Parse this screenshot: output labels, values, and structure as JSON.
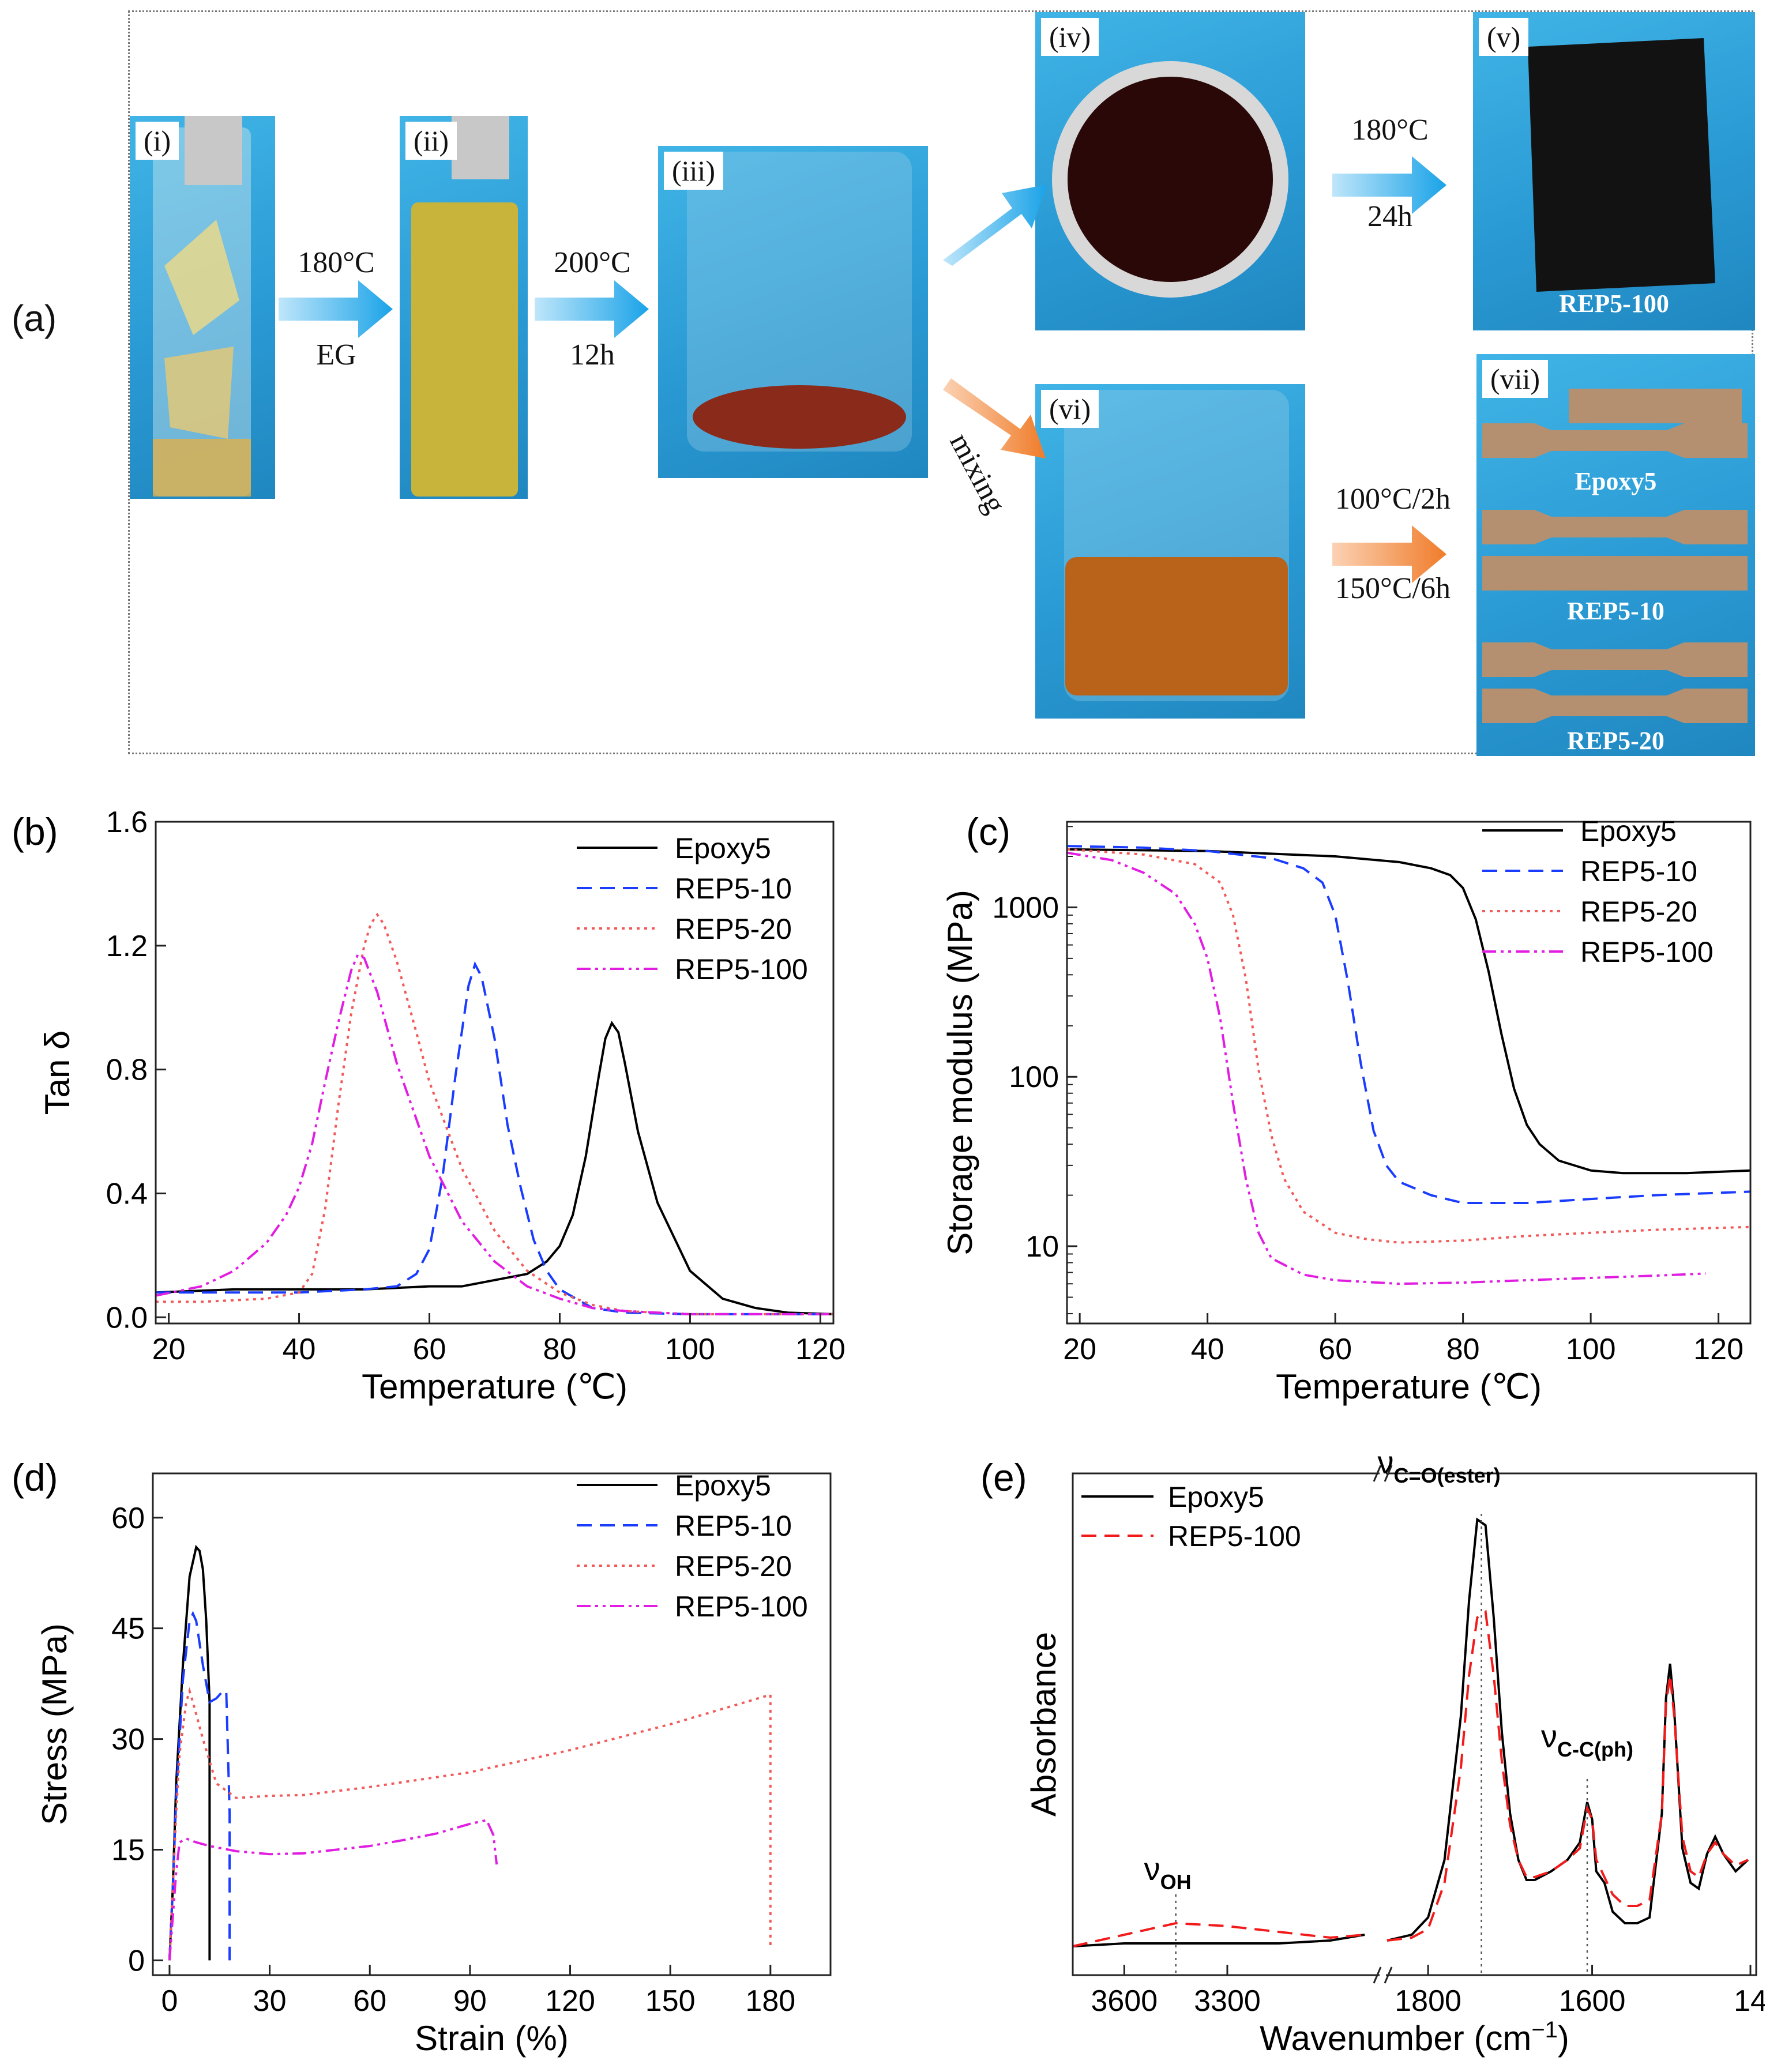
{
  "panel_a": {
    "label": "(a)",
    "photos": [
      {
        "id": "i",
        "label": "(i)"
      },
      {
        "id": "ii",
        "label": "(ii)"
      },
      {
        "id": "iii",
        "label": "(iii)"
      },
      {
        "id": "iv",
        "label": "(iv)"
      },
      {
        "id": "v",
        "label": "(v)",
        "caption": "REP5-100"
      },
      {
        "id": "vi",
        "label": "(vi)"
      },
      {
        "id": "vii",
        "label": "(vii)",
        "captions": [
          "Epoxy5",
          "REP5-10",
          "REP5-20"
        ]
      }
    ],
    "steps": {
      "s1_top": "180°C",
      "s1_bottom": "EG",
      "s2_top": "200°C",
      "s2_bottom": "12h",
      "s3_top": "180°C",
      "s3_bottom": "24h",
      "mixing": "mixing",
      "s4_top": "100°C/2h",
      "s4_bottom": "150°C/6h"
    },
    "colors": {
      "blue_arrow": "#1aa3e8",
      "orange_arrow": "#f07c2a",
      "photo_bg": "#2a9ad4"
    }
  },
  "chart_data": [
    {
      "id": "b",
      "panel_label": "(b)",
      "type": "line",
      "xlabel": "Temperature (℃)",
      "ylabel": "Tan δ",
      "xlim": [
        18,
        122
      ],
      "ylim": [
        -0.02,
        1.6
      ],
      "xticks": [
        20,
        40,
        60,
        80,
        100,
        120
      ],
      "yticks": [
        0.0,
        0.4,
        0.8,
        1.2,
        1.6
      ],
      "ytick_labels": [
        "0.0",
        "0.4",
        "0.8",
        "1.2",
        "1.6"
      ],
      "legend_position": "top-right",
      "series": [
        {
          "name": "Epoxy5",
          "color": "#000000",
          "dash": "solid",
          "x": [
            18,
            30,
            40,
            50,
            60,
            65,
            70,
            75,
            78,
            80,
            82,
            84,
            86,
            87,
            88,
            89,
            90,
            92,
            95,
            100,
            105,
            110,
            115,
            122
          ],
          "y": [
            0.08,
            0.09,
            0.09,
            0.09,
            0.1,
            0.1,
            0.12,
            0.14,
            0.18,
            0.23,
            0.33,
            0.52,
            0.78,
            0.9,
            0.95,
            0.92,
            0.82,
            0.6,
            0.37,
            0.15,
            0.06,
            0.03,
            0.015,
            0.01
          ]
        },
        {
          "name": "REP5-10",
          "color": "#1a3cff",
          "dash": "dashed",
          "x": [
            18,
            30,
            40,
            50,
            55,
            58,
            60,
            62,
            64,
            66,
            67,
            68,
            70,
            72,
            74,
            76,
            78,
            80,
            85,
            90,
            100,
            110,
            122
          ],
          "y": [
            0.08,
            0.08,
            0.08,
            0.09,
            0.1,
            0.14,
            0.22,
            0.45,
            0.78,
            1.07,
            1.14,
            1.1,
            0.9,
            0.62,
            0.42,
            0.25,
            0.15,
            0.09,
            0.03,
            0.015,
            0.01,
            0.01,
            0.01
          ]
        },
        {
          "name": "REP5-20",
          "color": "#f25a5a",
          "dash": "dotted",
          "x": [
            18,
            25,
            35,
            40,
            42,
            44,
            46,
            48,
            50,
            51,
            52,
            53,
            55,
            58,
            60,
            65,
            70,
            75,
            80,
            85,
            90,
            100,
            110,
            122
          ],
          "y": [
            0.05,
            0.05,
            0.06,
            0.08,
            0.14,
            0.35,
            0.68,
            0.98,
            1.2,
            1.27,
            1.3,
            1.27,
            1.15,
            0.92,
            0.76,
            0.48,
            0.28,
            0.15,
            0.08,
            0.04,
            0.02,
            0.01,
            0.01,
            0.01
          ]
        },
        {
          "name": "REP5-100",
          "color": "#e21de2",
          "dash": "dashdotdot",
          "x": [
            18,
            25,
            30,
            35,
            38,
            40,
            42,
            44,
            46,
            48,
            49,
            50,
            52,
            55,
            60,
            65,
            70,
            75,
            80,
            85,
            90,
            100,
            110,
            122
          ],
          "y": [
            0.07,
            0.1,
            0.15,
            0.24,
            0.33,
            0.42,
            0.56,
            0.76,
            0.95,
            1.12,
            1.17,
            1.16,
            1.05,
            0.82,
            0.52,
            0.31,
            0.18,
            0.1,
            0.06,
            0.03,
            0.02,
            0.01,
            0.01,
            0.01
          ]
        }
      ]
    },
    {
      "id": "c",
      "panel_label": "(c)",
      "type": "line",
      "yscale": "log",
      "xlabel": "Temperature (℃)",
      "ylabel": "Storage modulus (MPa)",
      "xlim": [
        18,
        125
      ],
      "ylim": [
        3.5,
        3200
      ],
      "xticks": [
        20,
        40,
        60,
        80,
        100,
        120
      ],
      "yticks": [
        10,
        100,
        1000
      ],
      "ytick_labels": [
        "10",
        "100",
        "1000"
      ],
      "legend_position": "top-right",
      "series": [
        {
          "name": "Epoxy5",
          "color": "#000000",
          "dash": "solid",
          "x": [
            18,
            40,
            60,
            70,
            75,
            78,
            80,
            82,
            84,
            86,
            88,
            90,
            92,
            95,
            100,
            105,
            110,
            115,
            120,
            125
          ],
          "y": [
            2200,
            2150,
            2000,
            1850,
            1700,
            1550,
            1300,
            850,
            420,
            180,
            85,
            52,
            40,
            32,
            28,
            27,
            27,
            27,
            27.5,
            28
          ]
        },
        {
          "name": "REP5-10",
          "color": "#1a3cff",
          "dash": "dashed",
          "x": [
            18,
            30,
            40,
            50,
            55,
            58,
            60,
            62,
            64,
            66,
            68,
            70,
            75,
            80,
            90,
            100,
            110,
            125
          ],
          "y": [
            2300,
            2250,
            2150,
            1950,
            1700,
            1400,
            900,
            360,
            120,
            48,
            30,
            24,
            20,
            18,
            18,
            19,
            20,
            21
          ]
        },
        {
          "name": "REP5-20",
          "color": "#f25a5a",
          "dash": "dotted",
          "x": [
            18,
            30,
            38,
            42,
            44,
            46,
            48,
            50,
            52,
            55,
            60,
            65,
            70,
            80,
            90,
            100,
            110,
            125
          ],
          "y": [
            2200,
            2050,
            1800,
            1400,
            900,
            380,
            110,
            45,
            25,
            16,
            12,
            11,
            10.5,
            10.8,
            11.5,
            12,
            12.5,
            13
          ]
        },
        {
          "name": "REP5-100",
          "color": "#e21de2",
          "dash": "dashdotdot",
          "x": [
            18,
            25,
            30,
            35,
            38,
            40,
            42,
            44,
            46,
            48,
            50,
            55,
            60,
            70,
            80,
            90,
            100,
            110,
            118
          ],
          "y": [
            2100,
            1900,
            1600,
            1200,
            800,
            500,
            220,
            70,
            25,
            12,
            8.5,
            6.8,
            6.3,
            6.0,
            6.1,
            6.3,
            6.5,
            6.7,
            6.9
          ]
        }
      ]
    },
    {
      "id": "d",
      "panel_label": "(d)",
      "type": "line",
      "xlabel": "Strain (%)",
      "ylabel": "Stress (MPa)",
      "xlim": [
        -5,
        198
      ],
      "ylim": [
        -2,
        66
      ],
      "xticks": [
        0,
        30,
        60,
        90,
        120,
        150,
        180
      ],
      "yticks": [
        0,
        15,
        30,
        45,
        60
      ],
      "ytick_labels": [
        "0",
        "15",
        "30",
        "45",
        "60"
      ],
      "legend_position": "top-right",
      "series": [
        {
          "name": "Epoxy5",
          "color": "#000000",
          "dash": "solid",
          "x": [
            0,
            1,
            2,
            4,
            6,
            8,
            9,
            10,
            11,
            12,
            12,
            12
          ],
          "y": [
            0,
            10,
            24,
            40,
            52,
            56,
            55.5,
            53,
            46,
            35,
            15,
            0
          ]
        },
        {
          "name": "REP5-10",
          "color": "#1a3cff",
          "dash": "dashed",
          "x": [
            0,
            1,
            2,
            4,
            6,
            7,
            8,
            10,
            12,
            14,
            16,
            17,
            18,
            18
          ],
          "y": [
            0,
            10,
            22,
            38,
            46,
            47,
            46,
            40,
            35,
            35.5,
            36.5,
            36.5,
            20,
            0
          ]
        },
        {
          "name": "REP5-20",
          "color": "#f25a5a",
          "dash": "dotted",
          "x": [
            0,
            1,
            2,
            3,
            5,
            6,
            7,
            10,
            14,
            20,
            30,
            40,
            60,
            90,
            120,
            150,
            180,
            180
          ],
          "y": [
            0,
            10,
            20,
            28,
            35,
            36.5,
            35,
            30,
            24,
            22,
            22.3,
            22.4,
            23.5,
            25.5,
            28.5,
            32,
            36,
            2
          ]
        },
        {
          "name": "REP5-100",
          "color": "#e21de2",
          "dash": "dashdotdot",
          "x": [
            0,
            1,
            2,
            3,
            5,
            8,
            12,
            20,
            30,
            40,
            50,
            60,
            70,
            80,
            90,
            95,
            97,
            98
          ],
          "y": [
            0,
            6,
            12,
            16,
            16.5,
            16,
            15.5,
            14.8,
            14.4,
            14.5,
            15,
            15.5,
            16.3,
            17.2,
            18.5,
            19,
            17,
            13
          ]
        }
      ]
    },
    {
      "id": "e",
      "panel_label": "(e)",
      "type": "line",
      "broken_axis": true,
      "xlabel": "Wavenumber (cm",
      "xlabel_sup": "−1",
      "xlabel_end": ")",
      "ylabel": "Absorbance",
      "xtick_labels": [
        "3600",
        "3300",
        "1800",
        "1600",
        "14"
      ],
      "legend_position": "top-left",
      "annotations": {
        "oh": "ν",
        "oh_sub": "OH",
        "co": "ν",
        "co_sub": "C=O(ester)",
        "cc": "ν",
        "cc_sub": "C-C(ph)"
      },
      "series": [
        {
          "name": "Epoxy5",
          "color": "#000000",
          "dash": "solid",
          "seg1": {
            "x": [
              3750,
              3600,
              3450,
              3300,
              3150,
              3000,
              2900
            ],
            "y": [
              0.05,
              0.055,
              0.055,
              0.055,
              0.055,
              0.06,
              0.07
            ]
          },
          "seg2": {
            "x": [
              1850,
              1820,
              1800,
              1780,
              1760,
              1750,
              1740,
              1730,
              1720,
              1710,
              1700,
              1690,
              1680,
              1670,
              1650,
              1630,
              1615,
              1606,
              1600,
              1595,
              1585,
              1575,
              1560,
              1545,
              1530,
              1515,
              1510,
              1505,
              1500,
              1490,
              1480,
              1470,
              1460,
              1450,
              1440,
              1425,
              1410
            ],
            "y": [
              0.06,
              0.07,
              0.1,
              0.2,
              0.45,
              0.65,
              0.79,
              0.78,
              0.62,
              0.42,
              0.28,
              0.2,
              0.165,
              0.165,
              0.18,
              0.2,
              0.23,
              0.3,
              0.27,
              0.18,
              0.16,
              0.11,
              0.09,
              0.09,
              0.1,
              0.28,
              0.48,
              0.54,
              0.46,
              0.22,
              0.16,
              0.15,
              0.21,
              0.24,
              0.21,
              0.18,
              0.2
            ]
          }
        },
        {
          "name": "REP5-100",
          "color": "#f21b1b",
          "dash": "dashed",
          "seg1": {
            "x": [
              3750,
              3600,
              3450,
              3300,
              3150,
              3000,
              2900
            ],
            "y": [
              0.05,
              0.07,
              0.09,
              0.085,
              0.075,
              0.065,
              0.07
            ]
          },
          "seg2": {
            "x": [
              1850,
              1820,
              1800,
              1780,
              1760,
              1750,
              1740,
              1730,
              1720,
              1710,
              1700,
              1690,
              1680,
              1670,
              1650,
              1630,
              1615,
              1606,
              1600,
              1595,
              1585,
              1575,
              1560,
              1545,
              1530,
              1515,
              1510,
              1505,
              1500,
              1490,
              1480,
              1470,
              1460,
              1450,
              1440,
              1425,
              1410
            ],
            "y": [
              0.06,
              0.065,
              0.08,
              0.16,
              0.36,
              0.52,
              0.62,
              0.63,
              0.52,
              0.37,
              0.26,
              0.2,
              0.17,
              0.17,
              0.18,
              0.2,
              0.22,
              0.29,
              0.27,
              0.2,
              0.17,
              0.14,
              0.12,
              0.12,
              0.13,
              0.28,
              0.47,
              0.52,
              0.45,
              0.24,
              0.18,
              0.17,
              0.21,
              0.23,
              0.21,
              0.19,
              0.2
            ]
          }
        }
      ]
    }
  ]
}
